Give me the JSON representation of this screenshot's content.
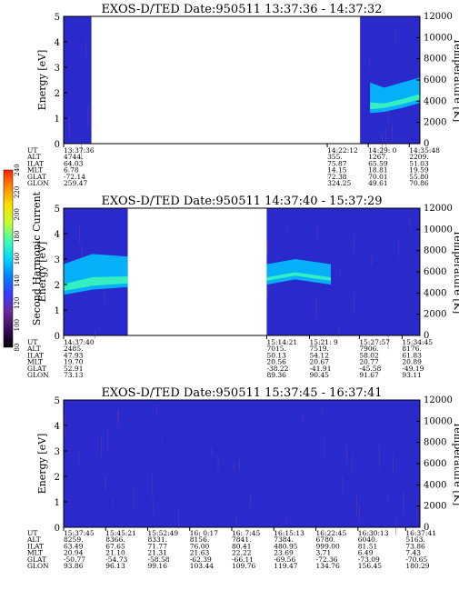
{
  "colors": {
    "background": "#2a2acc",
    "noise": "#7a3a9a",
    "cbar": [
      "#000000",
      "#3a0a5a",
      "#6a2a9a",
      "#3a3aff",
      "#0080ff",
      "#00d8ff",
      "#40ffb0",
      "#c0ff30",
      "#ffe000",
      "#ff9000",
      "#ff2000"
    ]
  },
  "colorbar": {
    "label": "Second Harmonic Current",
    "ticks": [
      "80",
      "100",
      "120",
      "140",
      "160",
      "180",
      "200",
      "220",
      "240"
    ]
  },
  "chart_data": [
    {
      "type": "heatmap",
      "title": "EXOS-D/TED   Date:950511   13:37:36 - 14:37:32",
      "ylabel": "Energy [eV]",
      "y2label": "Temperature [K]",
      "ylim": [
        0,
        5
      ],
      "y2lim": [
        0,
        12000
      ],
      "yticks": [
        "0",
        "1",
        "2",
        "3",
        "4",
        "5"
      ],
      "y2ticks": [
        "0",
        "2000",
        "4000",
        "6000",
        "8000",
        "10000",
        "12000"
      ],
      "data_segments": [
        [
          0,
          0.078
        ],
        [
          0.832,
          1.0
        ]
      ],
      "band": {
        "x": [
          0.86,
          0.9,
          0.95,
          1.0
        ],
        "lo": [
          1.2,
          1.25,
          1.4,
          1.6
        ],
        "hi": [
          2.4,
          2.2,
          2.4,
          2.6
        ]
      },
      "ephemeris": {
        "labels": [
          "UT",
          "ALT",
          "ILAT",
          "MLT",
          "GLAT",
          "GLON"
        ],
        "columns": [
          {
            "pos": 0.0,
            "values": [
              "13:37:36",
              "4744.",
              "64.03",
              "6.78",
              "-72.14",
              "259.47"
            ]
          },
          {
            "pos": 0.74,
            "values": [
              "14:22:12",
              "355.",
              "75.87",
              "14.15",
              "72.38",
              "324.25"
            ]
          },
          {
            "pos": 0.855,
            "values": [
              "14:29: 0",
              "1267.",
              "65.59",
              "18.81",
              "70.01",
              "49.61"
            ]
          },
          {
            "pos": 0.97,
            "values": [
              "14:35:48",
              "2209.",
              "51.03",
              "19.59",
              "55.80",
              "70.86"
            ]
          }
        ]
      }
    },
    {
      "type": "heatmap",
      "title": "EXOS-D/TED   Date:950511   14:37:40 - 15:37:29",
      "ylabel": "Energy [eV]",
      "y2label": "Temperature [K]",
      "ylim": [
        0,
        5
      ],
      "y2lim": [
        0,
        12000
      ],
      "yticks": [
        "0",
        "1",
        "2",
        "3",
        "4",
        "5"
      ],
      "y2ticks": [
        "0",
        "2000",
        "4000",
        "6000",
        "8000",
        "10000",
        "12000"
      ],
      "data_segments": [
        [
          0,
          0.18
        ],
        [
          0.57,
          1.0
        ]
      ],
      "band": {
        "x": [
          0.0,
          0.08,
          0.18
        ],
        "lo": [
          1.6,
          1.8,
          1.9
        ],
        "hi": [
          2.8,
          3.2,
          3.1
        ]
      },
      "band2": {
        "x": [
          0.57,
          0.65,
          0.75
        ],
        "lo": [
          2.0,
          2.2,
          2.0
        ],
        "hi": [
          2.8,
          3.0,
          2.8
        ]
      },
      "ephemeris": {
        "labels": [
          "UT",
          "ALT",
          "ILAT",
          "MLT",
          "GLAT",
          "GLON"
        ],
        "columns": [
          {
            "pos": 0.0,
            "values": [
              "14:37:40",
              "2485.",
              "47.93",
              "19.70",
              "52.91",
              "73.13"
            ]
          },
          {
            "pos": 0.57,
            "values": [
              "15:14:21",
              "7015.",
              "50.13",
              "20.56",
              "-38.22",
              "89.36"
            ]
          },
          {
            "pos": 0.69,
            "values": [
              "15:21: 9",
              "7519.",
              "54.12",
              "20.67",
              "-41.91",
              "90.45"
            ]
          },
          {
            "pos": 0.83,
            "values": [
              "15:27:57",
              "7906.",
              "58.02",
              "20.77",
              "-45.58",
              "91.67"
            ]
          },
          {
            "pos": 0.95,
            "values": [
              "15:34:45",
              "8176.",
              "61.83",
              "20.89",
              "-49.19",
              "93.11"
            ]
          }
        ]
      }
    },
    {
      "type": "heatmap",
      "title": "EXOS-D/TED   Date:950511   15:37:45 - 16:37:41",
      "ylabel": "Energy [eV]",
      "y2label": "Temperature [K]",
      "ylim": [
        0,
        5
      ],
      "y2lim": [
        0,
        12000
      ],
      "yticks": [
        "0",
        "1",
        "2",
        "3",
        "4",
        "5"
      ],
      "y2ticks": [
        "0",
        "2000",
        "4000",
        "6000",
        "8000",
        "10000",
        "12000"
      ],
      "data_segments": [
        [
          0,
          1.0
        ]
      ],
      "ephemeris": {
        "labels": [
          "UT",
          "ALT",
          "ILAT",
          "MLT",
          "GLAT",
          "GLON"
        ],
        "columns": [
          {
            "pos": 0.0,
            "values": [
              "15:37:45",
              "8259.",
              "63.49",
              "20.94",
              "-50.77",
              "93.86"
            ]
          },
          {
            "pos": 0.118,
            "values": [
              "15:45:21",
              "8366.",
              "67.65",
              "21.10",
              "-54.73",
              "96.13"
            ]
          },
          {
            "pos": 0.236,
            "values": [
              "15:52:49",
              "8331.",
              "71.77",
              "21.31",
              "-58.58",
              "99.16"
            ]
          },
          {
            "pos": 0.354,
            "values": [
              "16: 0:17",
              "8156.",
              "76.00",
              "21.63",
              "-62.39",
              "103.44"
            ]
          },
          {
            "pos": 0.472,
            "values": [
              "16: 7:45",
              "7841.",
              "80.41",
              "22.22",
              "-66.11",
              "109.76"
            ]
          },
          {
            "pos": 0.59,
            "values": [
              "16:15:13",
              "7384.",
              "480.95",
              "23.69",
              "-69.56",
              "119.47"
            ]
          },
          {
            "pos": 0.708,
            "values": [
              "16:22:45",
              "6780.",
              "999.00",
              "3.71",
              "-72.36",
              "134.76"
            ]
          },
          {
            "pos": 0.826,
            "values": [
              "16:30:13",
              "6040.",
              "81.51",
              "6.49",
              "-73.09",
              "156.45"
            ]
          },
          {
            "pos": 0.96,
            "values": [
              "16:37:41",
              "5163.",
              "73.86",
              "7.43",
              "-70.65",
              "180.29"
            ]
          }
        ]
      }
    }
  ]
}
